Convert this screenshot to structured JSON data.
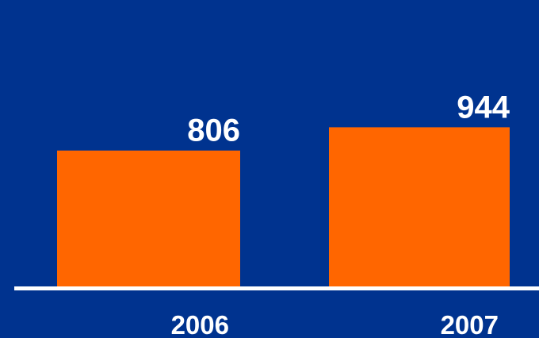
{
  "chart_data": {
    "type": "bar",
    "categories": [
      "2006",
      "2007"
    ],
    "values": [
      806,
      944
    ],
    "data_labels": [
      "806",
      "944"
    ],
    "title": "",
    "xlabel": "",
    "ylabel": "",
    "ylim": [
      0,
      1000
    ],
    "grid": false,
    "legend": "none",
    "bar_color": "#ff6600",
    "background_color": "#00338f",
    "axis_color": "#ffffff",
    "text_color": "#ffffff"
  }
}
